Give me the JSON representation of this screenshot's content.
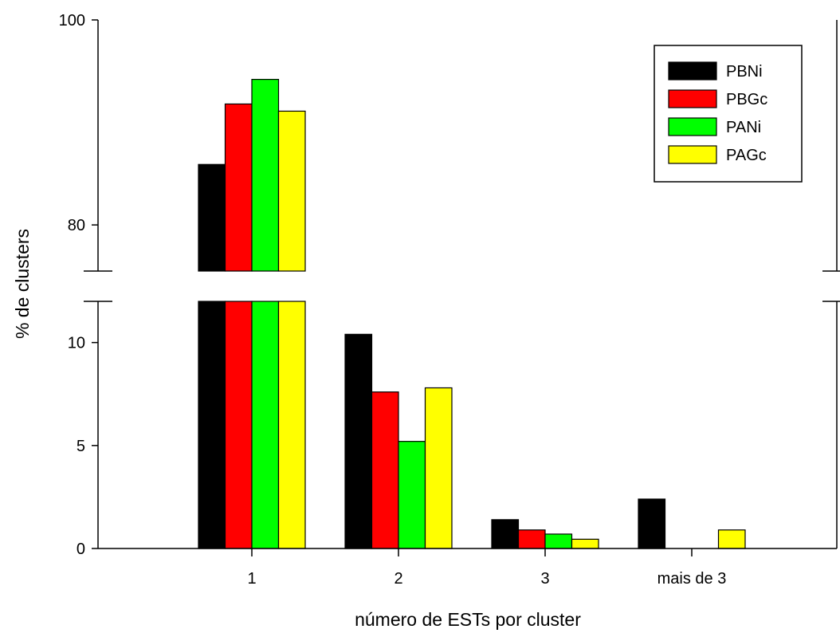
{
  "chart_data": {
    "type": "bar",
    "title": "",
    "xlabel": "número de ESTs por cluster",
    "ylabel": "% de clusters",
    "categories": [
      "1",
      "2",
      "3",
      "mais de 3"
    ],
    "series": [
      {
        "name": "PBNi",
        "color": "#000000",
        "values": [
          85.9,
          10.4,
          1.4,
          2.4
        ]
      },
      {
        "name": "PBGc",
        "color": "#ff0000",
        "values": [
          91.8,
          7.6,
          0.9,
          0.0
        ]
      },
      {
        "name": "PANi",
        "color": "#00ff00",
        "values": [
          94.2,
          5.2,
          0.7,
          0.0
        ]
      },
      {
        "name": "PAGc",
        "color": "#ffff00",
        "values": [
          91.1,
          7.8,
          0.45,
          0.9
        ]
      }
    ],
    "axis_break": true,
    "lower_ylim": [
      0,
      12
    ],
    "upper_ylim": [
      75.5,
      100
    ],
    "lower_yticks": [
      "0",
      "5",
      "10"
    ],
    "upper_yticks": [
      "80",
      "100"
    ],
    "legend_position": "top-right",
    "grid": false
  }
}
